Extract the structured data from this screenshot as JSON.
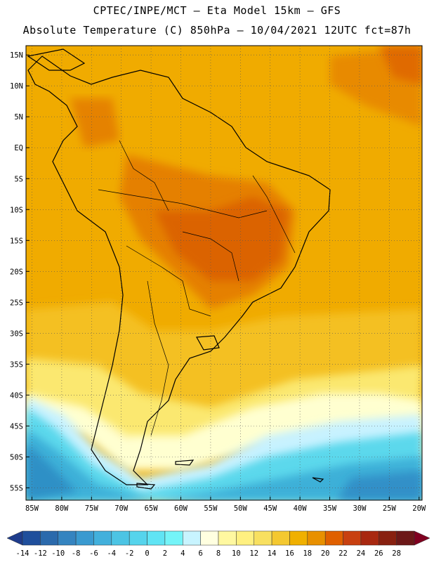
{
  "header": {
    "line1": "CPTEC/INPE/MCT —  Eta Model 15km — GFS",
    "line2": "Absolute Temperature (C) 850hPa — 10/04/2021 12UTC fct=87h"
  },
  "map": {
    "lat_labels": [
      "15N",
      "10N",
      "5N",
      "EQ",
      "5S",
      "10S",
      "15S",
      "20S",
      "25S",
      "30S",
      "35S",
      "40S",
      "45S",
      "50S",
      "55S"
    ],
    "lon_labels": [
      "85W",
      "80W",
      "75W",
      "70W",
      "65W",
      "60W",
      "55W",
      "50W",
      "45W",
      "40W",
      "35W",
      "30W",
      "25W",
      "20W"
    ],
    "lat_range": [
      -57,
      16.5
    ],
    "lon_range": [
      -86,
      -19.5
    ],
    "grid": "dotted",
    "land_colors": {
      "ocean_warm": "#f0a800",
      "land_hot": "#e07000",
      "land_very_hot": "#d85a00",
      "mid": "#f4c010",
      "cool_yellow": "#fff480",
      "pale": "#ffffcc",
      "light_cyan": "#c8f4ff",
      "cyan": "#60e0f0",
      "blue": "#3ca8d4",
      "dark_blue": "#3088c0"
    }
  },
  "colorbar": {
    "labels": [
      "-14",
      "-12",
      "-10",
      "-8",
      "-6",
      "-4",
      "-2",
      "0",
      "2",
      "4",
      "6",
      "8",
      "10",
      "12",
      "14",
      "16",
      "18",
      "20",
      "22",
      "24",
      "26",
      "28"
    ],
    "colors": [
      "#1e3c8c",
      "#1f4f9c",
      "#2b6aac",
      "#3584c0",
      "#3a9ad0",
      "#42b0dc",
      "#4cc4e4",
      "#56d4ec",
      "#60e4f4",
      "#74f4f8",
      "#c8f4ff",
      "#ffffe0",
      "#fff8a0",
      "#fff080",
      "#f8e060",
      "#f4c830",
      "#f0b000",
      "#e89000",
      "#e06000",
      "#c84010",
      "#a82810",
      "#882010",
      "#6c1818",
      "#800020"
    ]
  }
}
